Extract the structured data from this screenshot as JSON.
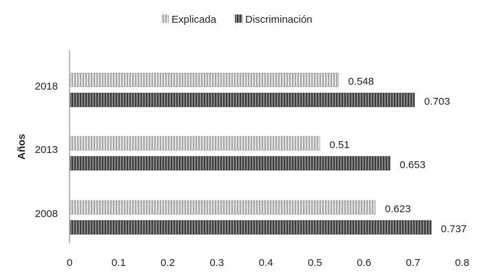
{
  "chart_data": {
    "type": "bar",
    "orientation": "horizontal",
    "title": "",
    "xlabel": "",
    "ylabel": "Años",
    "xlim": [
      0,
      0.8
    ],
    "x_ticks": [
      "0",
      "0.1",
      "0.2",
      "0.3",
      "0.4",
      "0.5",
      "0.6",
      "0.7",
      "0.8"
    ],
    "x_tick_values": [
      0,
      0.1,
      0.2,
      0.3,
      0.4,
      0.5,
      0.6,
      0.7,
      0.8
    ],
    "categories": [
      "2018",
      "2013",
      "2008"
    ],
    "series": [
      {
        "name": "Explicada",
        "values": [
          0.548,
          0.51,
          0.623
        ],
        "labels": [
          "0.548",
          "0.51",
          "0.623"
        ],
        "color": "#b0b0b0"
      },
      {
        "name": "Discriminación",
        "values": [
          0.703,
          0.653,
          0.737
        ],
        "labels": [
          "0.703",
          "0.653",
          "0.737"
        ],
        "color": "#4a4a4a"
      }
    ],
    "legend_position": "top-center",
    "grid": false
  }
}
